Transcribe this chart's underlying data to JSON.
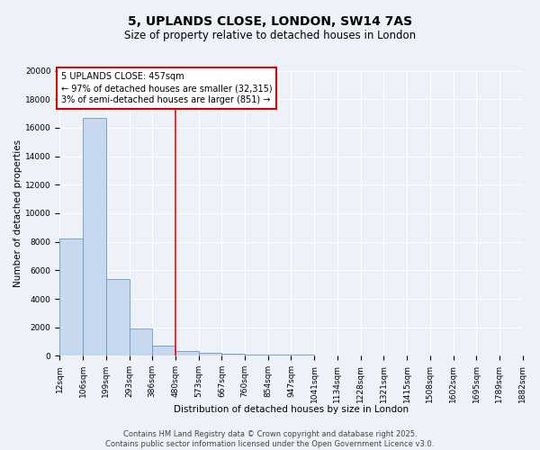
{
  "title": "5, UPLANDS CLOSE, LONDON, SW14 7AS",
  "subtitle": "Size of property relative to detached houses in London",
  "xlabel": "Distribution of detached houses by size in London",
  "ylabel": "Number of detached properties",
  "bar_values": [
    8200,
    16700,
    5400,
    1900,
    700,
    350,
    200,
    150,
    100,
    80,
    60,
    50,
    40,
    30,
    20,
    15,
    10,
    8,
    5,
    3
  ],
  "bin_edges": [
    12,
    106,
    199,
    293,
    386,
    480,
    573,
    667,
    760,
    854,
    947,
    1041,
    1134,
    1228,
    1321,
    1415,
    1508,
    1602,
    1695,
    1789,
    1882
  ],
  "bar_color": "#c8d8ef",
  "bar_edge_color": "#6699cc",
  "red_line_x": 480,
  "annotation_line1": "5 UPLANDS CLOSE: 457sqm",
  "annotation_line2": "← 97% of detached houses are smaller (32,315)",
  "annotation_line3": "3% of semi-detached houses are larger (851) →",
  "annotation_box_color": "#ffffff",
  "annotation_box_edge_color": "#cc0000",
  "ylim": [
    0,
    20000
  ],
  "yticks": [
    0,
    2000,
    4000,
    6000,
    8000,
    10000,
    12000,
    14000,
    16000,
    18000,
    20000
  ],
  "footer_text": "Contains HM Land Registry data © Crown copyright and database right 2025.\nContains public sector information licensed under the Open Government Licence v3.0.",
  "background_color": "#eef2f8",
  "grid_color": "#ffffff",
  "title_fontsize": 10,
  "subtitle_fontsize": 8.5,
  "axis_label_fontsize": 7.5,
  "tick_fontsize": 6.5,
  "annotation_fontsize": 7,
  "footer_fontsize": 6
}
